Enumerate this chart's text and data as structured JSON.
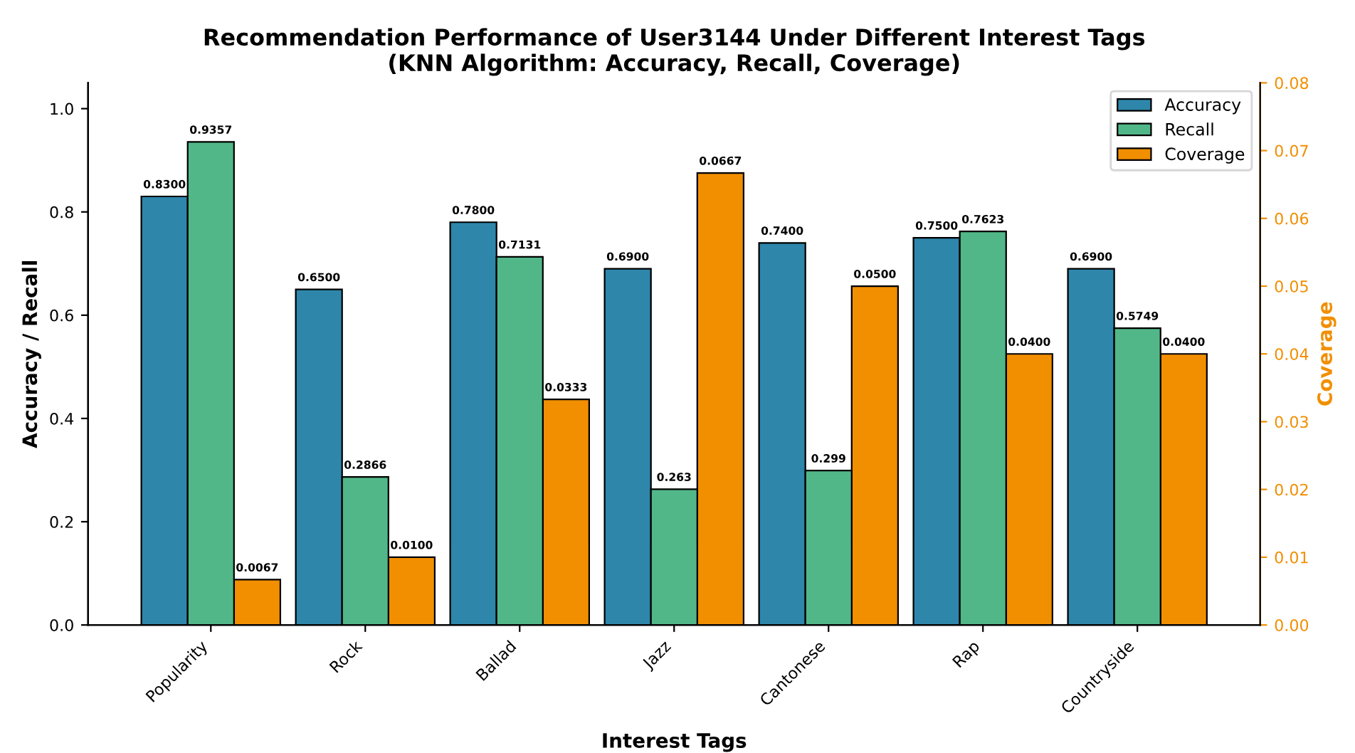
{
  "chart_data": {
    "type": "bar",
    "title": "Recommendation Performance of User3144 Under Different Interest Tags\n(KNN Algorithm: Accuracy, Recall, Coverage)",
    "xlabel": "Interest Tags",
    "ylabel": "Accuracy / Recall",
    "y2label": "Coverage",
    "categories": [
      "Popularity",
      "Rock",
      "Ballad",
      "Jazz",
      "Cantonese",
      "Rap",
      "Countryside"
    ],
    "series": [
      {
        "name": "Accuracy",
        "color": "#2e86ab",
        "values": [
          0.83,
          0.65,
          0.78,
          0.69,
          0.74,
          0.75,
          0.69
        ],
        "value_labels": [
          "0.8300",
          "0.6500",
          "0.7800",
          "0.6900",
          "0.7400",
          "0.7500",
          "0.6900"
        ]
      },
      {
        "name": "Recall",
        "color": "#52b788",
        "values": [
          0.9357,
          0.2866,
          0.7131,
          0.263,
          0.299,
          0.7623,
          0.5749
        ],
        "value_labels": [
          "0.9357",
          "0.2866",
          "0.7131",
          "0.263",
          "0.299",
          "0.7623",
          "0.5749"
        ]
      },
      {
        "name": "Coverage",
        "color": "#f18f01",
        "axis": "y2",
        "values": [
          0.0067,
          0.01,
          0.0333,
          0.0667,
          0.05,
          0.04,
          0.04
        ],
        "value_labels": [
          "0.0067",
          "0.0100",
          "0.0333",
          "0.0667",
          "0.0500",
          "0.0400",
          "0.0400"
        ]
      }
    ],
    "ylim": [
      0,
      1.05
    ],
    "yticks": [
      {
        "value": 0,
        "label": "0.0"
      },
      {
        "value": 0.2,
        "label": "0.2"
      },
      {
        "value": 0.4,
        "label": "0.4"
      },
      {
        "value": 0.6,
        "label": "0.6"
      },
      {
        "value": 0.8,
        "label": "0.8"
      },
      {
        "value": 1.0,
        "label": "1.0"
      }
    ],
    "y2lim": [
      0,
      0.08
    ],
    "y2ticks": [
      {
        "value": 0,
        "label": "0.00"
      },
      {
        "value": 0.01,
        "label": "0.01"
      },
      {
        "value": 0.02,
        "label": "0.02"
      },
      {
        "value": 0.03,
        "label": "0.03"
      },
      {
        "value": 0.04,
        "label": "0.04"
      },
      {
        "value": 0.05,
        "label": "0.05"
      },
      {
        "value": 0.06,
        "label": "0.06"
      },
      {
        "value": 0.07,
        "label": "0.07"
      },
      {
        "value": 0.08,
        "label": "0.08"
      }
    ],
    "legend": "top right",
    "grid": false
  }
}
